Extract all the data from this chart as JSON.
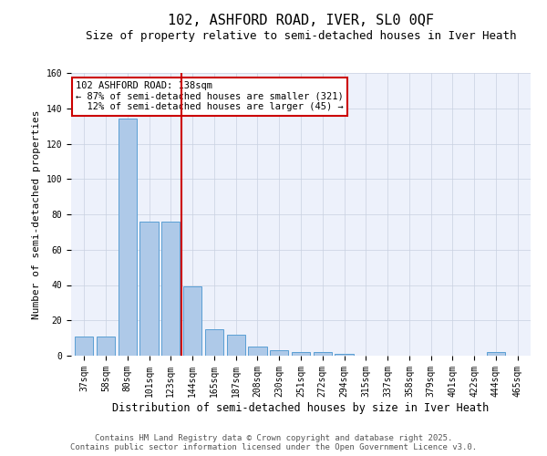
{
  "title1": "102, ASHFORD ROAD, IVER, SL0 0QF",
  "title2": "Size of property relative to semi-detached houses in Iver Heath",
  "xlabel": "Distribution of semi-detached houses by size in Iver Heath",
  "ylabel": "Number of semi-detached properties",
  "categories": [
    "37sqm",
    "58sqm",
    "80sqm",
    "101sqm",
    "123sqm",
    "144sqm",
    "165sqm",
    "187sqm",
    "208sqm",
    "230sqm",
    "251sqm",
    "272sqm",
    "294sqm",
    "315sqm",
    "337sqm",
    "358sqm",
    "379sqm",
    "401sqm",
    "422sqm",
    "444sqm",
    "465sqm"
  ],
  "values": [
    11,
    11,
    134,
    76,
    76,
    39,
    15,
    12,
    5,
    3,
    2,
    2,
    1,
    0,
    0,
    0,
    0,
    0,
    0,
    2,
    0
  ],
  "bar_color": "#aec9e8",
  "bar_edge_color": "#5a9fd4",
  "grid_color": "#c8d0e0",
  "bg_color": "#edf1fb",
  "annotation_line1": "102 ASHFORD ROAD: 138sqm",
  "annotation_line2": "← 87% of semi-detached houses are smaller (321)",
  "annotation_line3": "  12% of semi-detached houses are larger (45) →",
  "vline_color": "#cc0000",
  "annotation_box_color": "#cc0000",
  "footer1": "Contains HM Land Registry data © Crown copyright and database right 2025.",
  "footer2": "Contains public sector information licensed under the Open Government Licence v3.0.",
  "ylim": [
    0,
    160
  ],
  "yticks": [
    0,
    20,
    40,
    60,
    80,
    100,
    120,
    140,
    160
  ],
  "title1_fontsize": 11,
  "title2_fontsize": 9,
  "xlabel_fontsize": 8.5,
  "ylabel_fontsize": 8,
  "tick_fontsize": 7,
  "annotation_fontsize": 7.5,
  "footer_fontsize": 6.5
}
